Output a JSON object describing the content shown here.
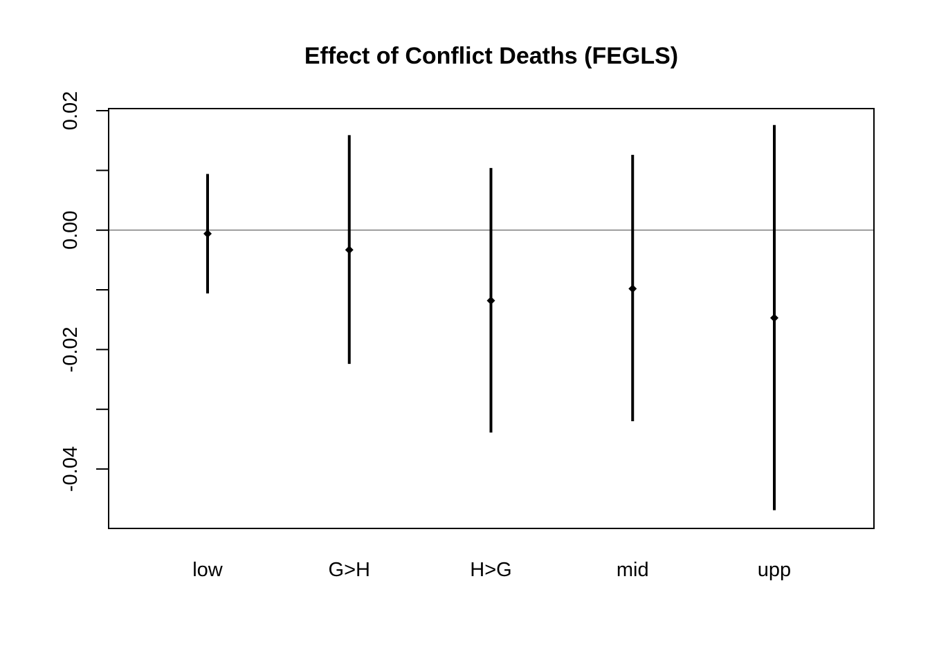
{
  "chart_data": {
    "type": "errorbar",
    "title": "Effect of Conflict Deaths (FEGLS)",
    "xlabel": "",
    "ylabel": "",
    "categories": [
      "low",
      "G>H",
      "H>G",
      "mid",
      "upp"
    ],
    "estimates": [
      -0.0006,
      -0.0033,
      -0.0118,
      -0.0098,
      -0.0147
    ],
    "lower": [
      -0.0106,
      -0.0224,
      -0.0339,
      -0.032,
      -0.0469
    ],
    "upper": [
      0.0094,
      0.0159,
      0.0104,
      0.0126,
      0.0176
    ],
    "ylim": [
      -0.0496,
      0.02
    ],
    "yticks": [
      0.02,
      0.01,
      0.0,
      -0.01,
      -0.02,
      -0.03,
      -0.04
    ],
    "ytick_labels": [
      "0.02",
      "",
      "0.00",
      "",
      "-0.02",
      "",
      "-0.04"
    ],
    "reference_line": 0.0,
    "colors": {
      "marks": "#000000",
      "reference_line": "#555555",
      "frame": "#000000",
      "background": "#ffffff"
    }
  }
}
